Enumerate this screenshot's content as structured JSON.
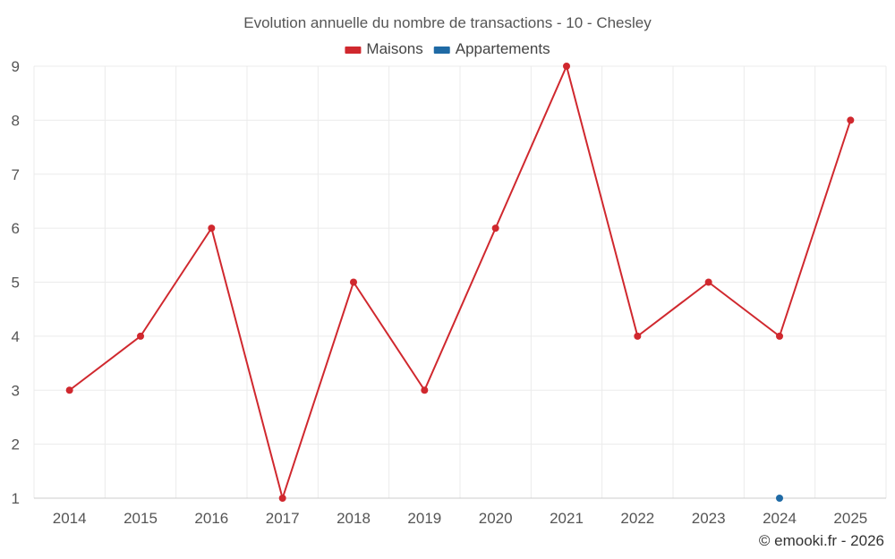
{
  "chart_data": {
    "type": "line",
    "title": "Evolution annuelle du nombre de transactions - 10 - Chesley",
    "xlabel": "",
    "ylabel": "",
    "categories": [
      "2014",
      "2015",
      "2016",
      "2017",
      "2018",
      "2019",
      "2020",
      "2021",
      "2022",
      "2023",
      "2024",
      "2025"
    ],
    "series": [
      {
        "name": "Maisons",
        "color": "#d0282e",
        "values": [
          3,
          4,
          6,
          1,
          5,
          3,
          6,
          9,
          4,
          5,
          4,
          8
        ]
      },
      {
        "name": "Appartements",
        "color": "#1f6aa5",
        "values": [
          null,
          null,
          null,
          null,
          null,
          null,
          null,
          null,
          null,
          null,
          1,
          null
        ]
      }
    ],
    "ylim": [
      1,
      9
    ],
    "yticks": [
      1,
      2,
      3,
      4,
      5,
      6,
      7,
      8,
      9
    ],
    "grid": true,
    "legend_position": "top-center"
  },
  "credit": "© emooki.fr - 2026"
}
